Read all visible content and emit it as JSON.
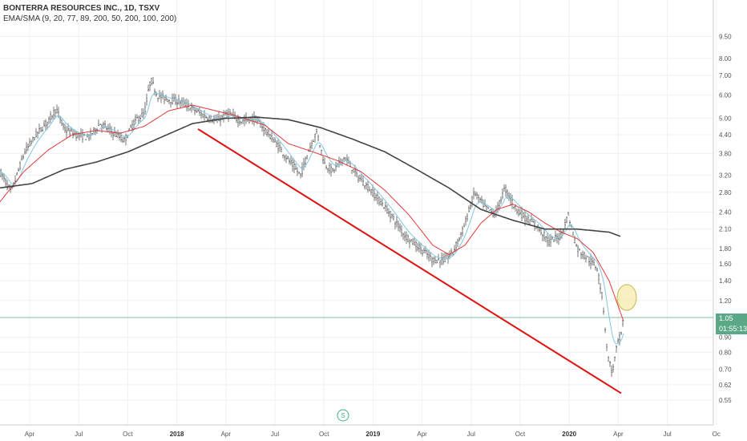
{
  "legend": {
    "title": "BONTERRA RESOURCES INC., 1D, TSXV",
    "indicators": "EMA/SMA (9, 20, 77, 89, 200, 50, 200, 100, 200)"
  },
  "price_tag": {
    "last": "1.05",
    "countdown": "01:55:13"
  },
  "event_marker": {
    "label": "S"
  },
  "colors": {
    "candles": "#555555",
    "ema_fast": "#7ec8e3",
    "ema_mid": "#e23a3a",
    "sma_long": "#444444",
    "trendline": "#e01010",
    "highlight_circle": "#f2e89a",
    "price_line": "#7fbfa6",
    "tag_bg": "#5aa886",
    "grid": "#eef0f3",
    "axis": "#c8ccd2"
  },
  "chart_data": {
    "type": "line",
    "title": "BONTERRA RESOURCES INC., 1D, TSXV",
    "y_scale": "log",
    "y_ticks": [
      "9.50",
      "8.00",
      "7.00",
      "6.00",
      "5.00",
      "4.40",
      "3.80",
      "3.20",
      "2.80",
      "2.40",
      "2.10",
      "1.80",
      "1.60",
      "1.40",
      "1.20",
      "0.90",
      "0.80",
      "0.70",
      "0.62",
      "0.55"
    ],
    "x_ticks": [
      {
        "label": "Apr",
        "year": false
      },
      {
        "label": "Jul",
        "year": false
      },
      {
        "label": "Oct",
        "year": false
      },
      {
        "label": "2018",
        "year": true
      },
      {
        "label": "Apr",
        "year": false
      },
      {
        "label": "Jul",
        "year": false
      },
      {
        "label": "Oct",
        "year": false
      },
      {
        "label": "2019",
        "year": true
      },
      {
        "label": "Apr",
        "year": false
      },
      {
        "label": "Jul",
        "year": false
      },
      {
        "label": "Oct",
        "year": false
      },
      {
        "label": "2020",
        "year": true
      },
      {
        "label": "Apr",
        "year": false
      },
      {
        "label": "Jul",
        "year": false
      },
      {
        "label": "Oc",
        "year": false
      }
    ],
    "ylim": [
      0.52,
      9.5
    ],
    "grid": true,
    "price_keypoints": [
      [
        0,
        3.3
      ],
      [
        14,
        2.8
      ],
      [
        30,
        3.8
      ],
      [
        45,
        4.4
      ],
      [
        60,
        4.9
      ],
      [
        70,
        5.4
      ],
      [
        80,
        4.6
      ],
      [
        95,
        4.4
      ],
      [
        110,
        4.3
      ],
      [
        125,
        4.8
      ],
      [
        140,
        4.5
      ],
      [
        155,
        4.2
      ],
      [
        168,
        4.9
      ],
      [
        180,
        5.2
      ],
      [
        188,
        6.8
      ],
      [
        196,
        6.0
      ],
      [
        210,
        5.8
      ],
      [
        225,
        5.7
      ],
      [
        240,
        5.4
      ],
      [
        255,
        5.1
      ],
      [
        270,
        4.9
      ],
      [
        285,
        5.2
      ],
      [
        300,
        4.9
      ],
      [
        318,
        5.0
      ],
      [
        330,
        4.6
      ],
      [
        345,
        4.1
      ],
      [
        360,
        3.6
      ],
      [
        375,
        3.2
      ],
      [
        385,
        3.9
      ],
      [
        395,
        4.5
      ],
      [
        405,
        3.5
      ],
      [
        415,
        3.3
      ],
      [
        430,
        3.7
      ],
      [
        445,
        3.2
      ],
      [
        460,
        2.9
      ],
      [
        475,
        2.6
      ],
      [
        490,
        2.3
      ],
      [
        505,
        2.0
      ],
      [
        520,
        1.85
      ],
      [
        540,
        1.65
      ],
      [
        555,
        1.65
      ],
      [
        565,
        1.75
      ],
      [
        578,
        2.1
      ],
      [
        592,
        2.8
      ],
      [
        605,
        2.5
      ],
      [
        618,
        2.35
      ],
      [
        630,
        2.9
      ],
      [
        642,
        2.5
      ],
      [
        655,
        2.3
      ],
      [
        670,
        2.15
      ],
      [
        685,
        1.9
      ],
      [
        700,
        2.0
      ],
      [
        709,
        2.35
      ],
      [
        720,
        1.8
      ],
      [
        735,
        1.65
      ],
      [
        745,
        1.55
      ],
      [
        752,
        1.2
      ],
      [
        758,
        0.78
      ],
      [
        764,
        0.68
      ],
      [
        770,
        0.85
      ],
      [
        775,
        0.92
      ],
      [
        778,
        1.05
      ]
    ],
    "ema_mid_keypoints": [
      [
        0,
        2.6
      ],
      [
        30,
        3.3
      ],
      [
        60,
        3.9
      ],
      [
        90,
        4.4
      ],
      [
        120,
        4.55
      ],
      [
        150,
        4.45
      ],
      [
        180,
        4.7
      ],
      [
        210,
        5.3
      ],
      [
        240,
        5.55
      ],
      [
        270,
        5.3
      ],
      [
        300,
        5.05
      ],
      [
        330,
        4.75
      ],
      [
        360,
        4.1
      ],
      [
        390,
        3.85
      ],
      [
        420,
        3.6
      ],
      [
        450,
        3.3
      ],
      [
        480,
        2.85
      ],
      [
        510,
        2.35
      ],
      [
        540,
        1.85
      ],
      [
        560,
        1.72
      ],
      [
        580,
        1.85
      ],
      [
        600,
        2.2
      ],
      [
        620,
        2.45
      ],
      [
        640,
        2.55
      ],
      [
        660,
        2.4
      ],
      [
        680,
        2.2
      ],
      [
        700,
        2.05
      ],
      [
        720,
        1.95
      ],
      [
        740,
        1.75
      ],
      [
        760,
        1.4
      ],
      [
        778,
        1.02
      ]
    ],
    "sma_long_keypoints": [
      [
        0,
        2.9
      ],
      [
        40,
        3.0
      ],
      [
        80,
        3.35
      ],
      [
        120,
        3.55
      ],
      [
        160,
        3.85
      ],
      [
        200,
        4.3
      ],
      [
        240,
        4.8
      ],
      [
        280,
        5.0
      ],
      [
        320,
        5.05
      ],
      [
        360,
        4.95
      ],
      [
        400,
        4.65
      ],
      [
        440,
        4.25
      ],
      [
        480,
        3.85
      ],
      [
        520,
        3.35
      ],
      [
        560,
        2.9
      ],
      [
        600,
        2.45
      ],
      [
        640,
        2.25
      ],
      [
        680,
        2.1
      ],
      [
        720,
        2.1
      ],
      [
        760,
        2.05
      ],
      [
        775,
        1.98
      ]
    ],
    "trendline": {
      "start": [
        247,
        4.6
      ],
      "end": [
        775,
        0.58
      ]
    },
    "last_price": 1.05
  }
}
